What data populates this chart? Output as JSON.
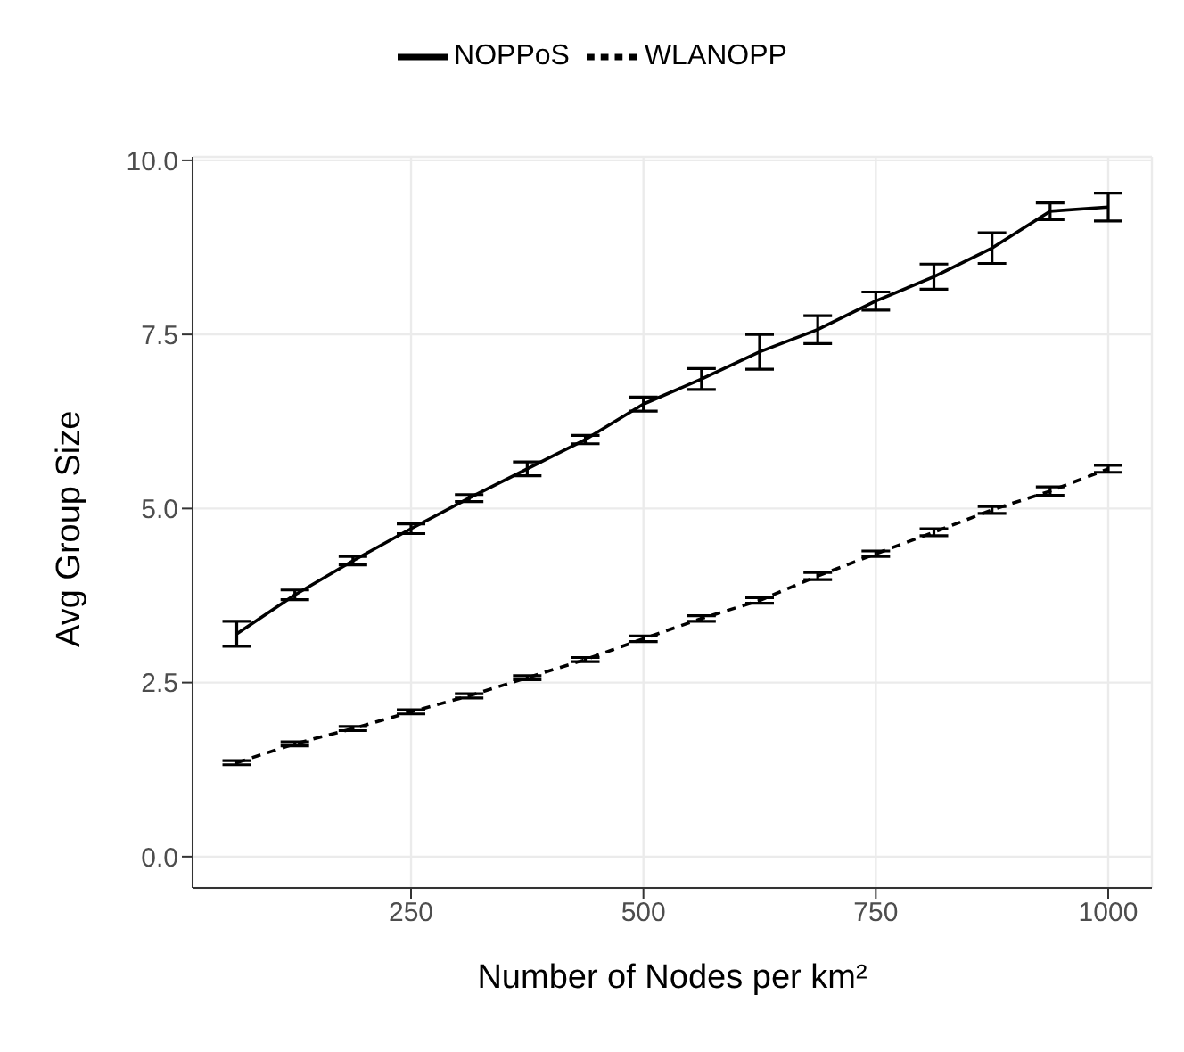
{
  "chart_data": {
    "type": "line",
    "xlabel": "Number of Nodes per km²",
    "ylabel": "Avg Group Size",
    "x": [
      62.5,
      125,
      187.5,
      250,
      312.5,
      375,
      437.5,
      500,
      562.5,
      625,
      687.5,
      750,
      812.5,
      875,
      937.5,
      1000
    ],
    "series": [
      {
        "name": "NOPPoS",
        "color": "#000000",
        "line_style": "solid",
        "values": [
          3.2,
          3.76,
          4.25,
          4.71,
          5.15,
          5.57,
          5.99,
          6.5,
          6.86,
          7.25,
          7.57,
          7.98,
          8.33,
          8.74,
          9.27,
          9.33
        ],
        "errors": [
          0.18,
          0.07,
          0.06,
          0.07,
          0.05,
          0.1,
          0.06,
          0.1,
          0.15,
          0.25,
          0.2,
          0.13,
          0.18,
          0.22,
          0.12,
          0.2
        ]
      },
      {
        "name": "WLANOPP",
        "color": "#000000",
        "line_style": "dashed",
        "values": [
          1.35,
          1.62,
          1.84,
          2.08,
          2.31,
          2.57,
          2.83,
          3.13,
          3.42,
          3.68,
          4.03,
          4.35,
          4.66,
          4.98,
          5.25,
          5.57
        ],
        "errors": [
          0.03,
          0.03,
          0.03,
          0.03,
          0.03,
          0.03,
          0.03,
          0.04,
          0.04,
          0.04,
          0.05,
          0.04,
          0.05,
          0.05,
          0.06,
          0.05
        ]
      }
    ],
    "xlim": [
      15,
      1047
    ],
    "xticks": [
      250,
      500,
      750,
      1000
    ],
    "ylim": [
      -0.45,
      10.05
    ],
    "yticks": [
      {
        "value": 0,
        "label": "0.0"
      },
      {
        "value": 2.5,
        "label": "2.5"
      },
      {
        "value": 5,
        "label": "5.0"
      },
      {
        "value": 7.5,
        "label": "7.5"
      },
      {
        "value": 10,
        "label": "10.0"
      }
    ],
    "grid": true,
    "legend": "top",
    "marker": "none"
  }
}
